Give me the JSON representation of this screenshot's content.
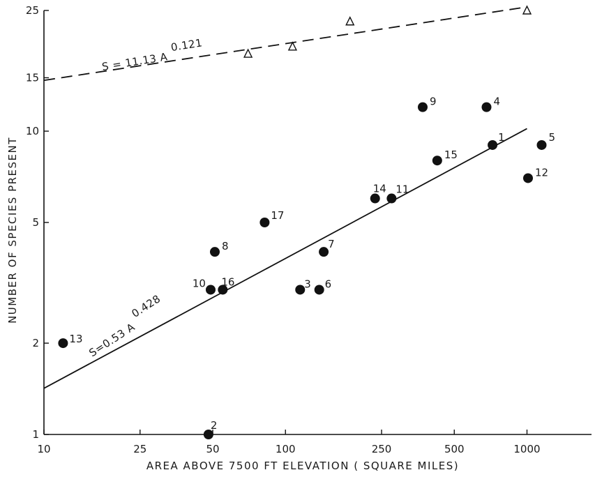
{
  "chart_data": {
    "type": "scatter",
    "title": "",
    "xlabel": "AREA ABOVE 7500 FT ELEVATION ( SQUARE MILES)",
    "ylabel": "NUMBER OF SPECIES PRESENT",
    "x_scale": "log",
    "y_scale": "log",
    "xlim": [
      10,
      1850
    ],
    "ylim": [
      1,
      25
    ],
    "x_ticks": [
      10,
      25,
      50,
      100,
      250,
      500,
      1000
    ],
    "x_tick_labels": [
      "10",
      "25",
      "50",
      "100",
      "250",
      "500",
      "1000"
    ],
    "y_ticks": [
      1,
      2,
      5,
      10,
      15,
      25
    ],
    "y_tick_labels": [
      "1",
      "2",
      "5",
      "10",
      "15",
      "25"
    ],
    "grid": false,
    "colors": {
      "ink": "#111111",
      "background": "#ffffff"
    },
    "series": [
      {
        "marker": "filled-circle",
        "points": [
          {
            "label": "1",
            "x": 720,
            "y": 9
          },
          {
            "label": "2",
            "x": 48,
            "y": 1
          },
          {
            "label": "3",
            "x": 115,
            "y": 3
          },
          {
            "label": "4",
            "x": 680,
            "y": 12
          },
          {
            "label": "5",
            "x": 1150,
            "y": 9
          },
          {
            "label": "6",
            "x": 138,
            "y": 3
          },
          {
            "label": "7",
            "x": 144,
            "y": 4
          },
          {
            "label": "8",
            "x": 51,
            "y": 4
          },
          {
            "label": "9",
            "x": 370,
            "y": 12
          },
          {
            "label": "10",
            "x": 49,
            "y": 3
          },
          {
            "label": "11",
            "x": 275,
            "y": 6
          },
          {
            "label": "12",
            "x": 1010,
            "y": 7
          },
          {
            "label": "13",
            "x": 12,
            "y": 2
          },
          {
            "label": "14",
            "x": 235,
            "y": 6
          },
          {
            "label": "15",
            "x": 425,
            "y": 8
          },
          {
            "label": "16",
            "x": 55,
            "y": 3
          },
          {
            "label": "17",
            "x": 82,
            "y": 5
          }
        ],
        "fit": {
          "equation": "S=0.53 A",
          "exponent": "0.428",
          "coef": 0.53,
          "power": 0.428,
          "x_range": [
            10,
            1000
          ],
          "style": "solid"
        }
      },
      {
        "marker": "open-triangle",
        "points": [
          {
            "x": 70,
            "y": 18
          },
          {
            "x": 107,
            "y": 19
          },
          {
            "x": 185,
            "y": 23
          },
          {
            "x": 1000,
            "y": 25
          }
        ],
        "fit": {
          "equation": "S = 11.13 A",
          "exponent": "0.121",
          "coef": 11.13,
          "power": 0.121,
          "x_range": [
            10,
            1000
          ],
          "style": "dashed"
        }
      }
    ]
  }
}
